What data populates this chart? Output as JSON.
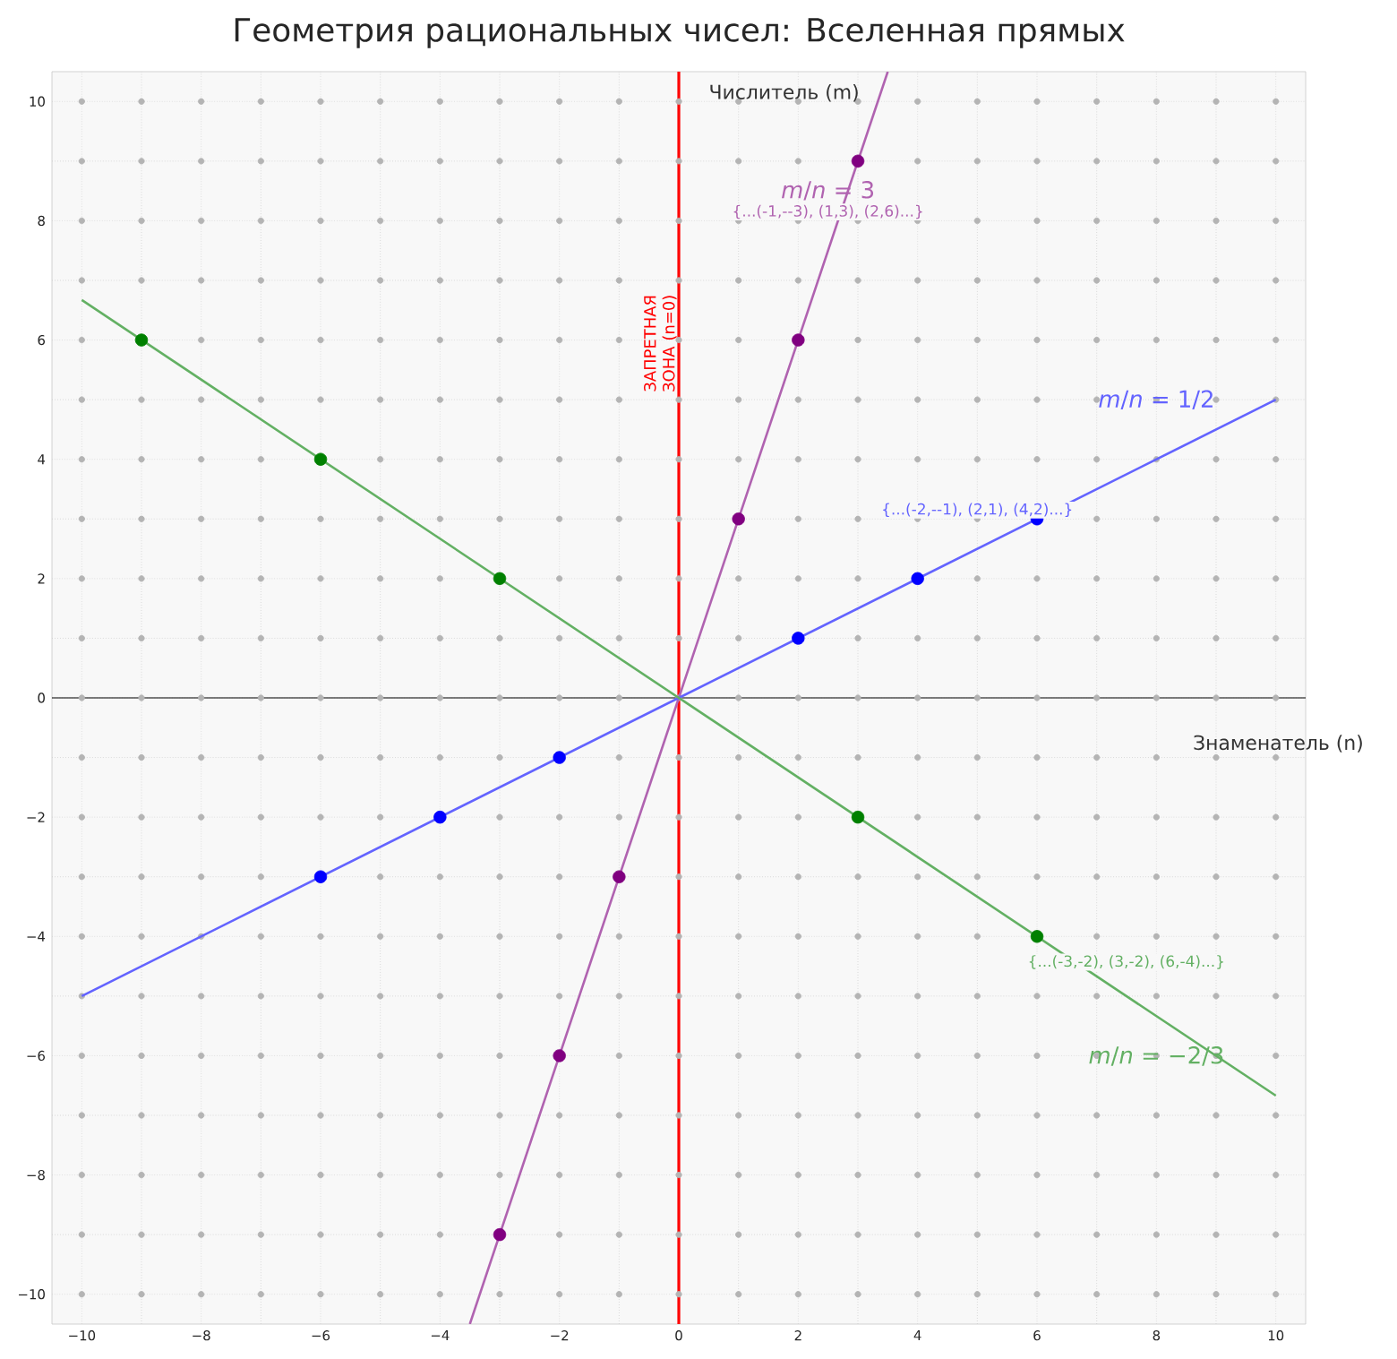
{
  "chart_data": {
    "type": "scatter",
    "title": "Геометрия рациональных чисел: Вселенная прямых",
    "xlabel": "Знаменатель (n)",
    "ylabel": "Числитель (m)",
    "xlim": [
      -10.5,
      10.5
    ],
    "ylim": [
      -10.5,
      10.5
    ],
    "xticks": [
      {
        "value": -10,
        "label": "−10"
      },
      {
        "value": -8,
        "label": "−8"
      },
      {
        "value": -6,
        "label": "−6"
      },
      {
        "value": -4,
        "label": "−4"
      },
      {
        "value": -2,
        "label": "−2"
      },
      0,
      2,
      4,
      6,
      8,
      10
    ],
    "yticks": [
      {
        "value": -10,
        "label": "−10"
      },
      {
        "value": -8,
        "label": "−8"
      },
      {
        "value": -6,
        "label": "−6"
      },
      {
        "value": -4,
        "label": "−4"
      },
      {
        "value": -2,
        "label": "−2"
      },
      0,
      2,
      4,
      6,
      8,
      10
    ],
    "grid": true,
    "marker": "circle",
    "series": [
      {
        "color": "#b4b4b4",
        "x": [
          -10,
          -10,
          -10,
          -10,
          -10,
          -10,
          -10,
          -10,
          -10,
          -10,
          -10,
          -10,
          -10,
          -10,
          -10,
          -10,
          -10,
          -10,
          -10,
          -10,
          -10,
          -9,
          -9,
          -9,
          -9,
          -9,
          -9,
          -9,
          -9,
          -9,
          -9,
          -9,
          -9,
          -9,
          -9,
          -9,
          -9,
          -9,
          -9,
          -9,
          -9,
          -8,
          -8,
          -8,
          -8,
          -8,
          -8,
          -8,
          -8,
          -8,
          -8,
          -8,
          -8,
          -8,
          -8,
          -8,
          -8,
          -8,
          -8,
          -8,
          -8,
          -8,
          -7,
          -7,
          -7,
          -7,
          -7,
          -7,
          -7,
          -7,
          -7,
          -7,
          -7,
          -7,
          -7,
          -7,
          -7,
          -7,
          -7,
          -7,
          -7,
          -7,
          -7,
          -6,
          -6,
          -6,
          -6,
          -6,
          -6,
          -6,
          -6,
          -6,
          -6,
          -6,
          -6,
          -6,
          -6,
          -6,
          -6,
          -6,
          -6,
          -6,
          -5,
          -5,
          -5,
          -5,
          -5,
          -5,
          -5,
          -5,
          -5,
          -5,
          -5,
          -5,
          -5,
          -5,
          -5,
          -5,
          -5,
          -5,
          -5,
          -5,
          -5,
          -4,
          -4,
          -4,
          -4,
          -4,
          -4,
          -4,
          -4,
          -4,
          -4,
          -4,
          -4,
          -4,
          -4,
          -4,
          -4,
          -4,
          -4,
          -4,
          -4,
          -3,
          -3,
          -3,
          -3,
          -3,
          -3,
          -3,
          -3,
          -3,
          -3,
          -3,
          -3,
          -3,
          -3,
          -3,
          -3,
          -3,
          -3,
          -3,
          -2,
          -2,
          -2,
          -2,
          -2,
          -2,
          -2,
          -2,
          -2,
          -2,
          -2,
          -2,
          -2,
          -2,
          -2,
          -2,
          -2,
          -2,
          -2,
          -1,
          -1,
          -1,
          -1,
          -1,
          -1,
          -1,
          -1,
          -1,
          -1,
          -1,
          -1,
          -1,
          -1,
          -1,
          -1,
          -1,
          -1,
          -1,
          -1,
          0,
          0,
          0,
          0,
          0,
          0,
          0,
          0,
          0,
          0,
          0,
          0,
          0,
          0,
          0,
          0,
          0,
          0,
          0,
          0,
          0,
          1,
          1,
          1,
          1,
          1,
          1,
          1,
          1,
          1,
          1,
          1,
          1,
          1,
          1,
          1,
          1,
          1,
          1,
          1,
          1,
          2,
          2,
          2,
          2,
          2,
          2,
          2,
          2,
          2,
          2,
          2,
          2,
          2,
          2,
          2,
          2,
          2,
          2,
          2,
          3,
          3,
          3,
          3,
          3,
          3,
          3,
          3,
          3,
          3,
          3,
          3,
          3,
          3,
          3,
          3,
          3,
          3,
          3,
          4,
          4,
          4,
          4,
          4,
          4,
          4,
          4,
          4,
          4,
          4,
          4,
          4,
          4,
          4,
          4,
          4,
          4,
          4,
          4,
          5,
          5,
          5,
          5,
          5,
          5,
          5,
          5,
          5,
          5,
          5,
          5,
          5,
          5,
          5,
          5,
          5,
          5,
          5,
          5,
          5,
          6,
          6,
          6,
          6,
          6,
          6,
          6,
          6,
          6,
          6,
          6,
          6,
          6,
          6,
          6,
          6,
          6,
          6,
          6,
          7,
          7,
          7,
          7,
          7,
          7,
          7,
          7,
          7,
          7,
          7,
          7,
          7,
          7,
          7,
          7,
          7,
          7,
          7,
          7,
          7,
          8,
          8,
          8,
          8,
          8,
          8,
          8,
          8,
          8,
          8,
          8,
          8,
          8,
          8,
          8,
          8,
          8,
          8,
          8,
          8,
          8,
          9,
          9,
          9,
          9,
          9,
          9,
          9,
          9,
          9,
          9,
          9,
          9,
          9,
          9,
          9,
          9,
          9,
          9,
          9,
          9,
          9,
          10,
          10,
          10,
          10,
          10,
          10,
          10,
          10,
          10,
          10,
          10,
          10,
          10,
          10,
          10,
          10,
          10,
          10,
          10,
          10,
          10
        ],
        "values": [
          -10,
          -9,
          -8,
          -7,
          -6,
          -5,
          -4,
          -3,
          -2,
          -1,
          0,
          1,
          2,
          3,
          4,
          5,
          6,
          7,
          8,
          9,
          10,
          -10,
          -9,
          -8,
          -7,
          -6,
          -5,
          -4,
          -3,
          -2,
          -1,
          0,
          1,
          2,
          3,
          4,
          5,
          7,
          8,
          9,
          10,
          -10,
          -9,
          -8,
          -7,
          -6,
          -5,
          -4,
          -3,
          -2,
          -1,
          0,
          1,
          2,
          3,
          4,
          5,
          6,
          7,
          8,
          9,
          10,
          -10,
          -9,
          -8,
          -7,
          -6,
          -5,
          -4,
          -3,
          -2,
          -1,
          0,
          1,
          2,
          3,
          4,
          5,
          6,
          7,
          8,
          9,
          10,
          -10,
          -9,
          -8,
          -7,
          -6,
          -5,
          -4,
          -2,
          -1,
          0,
          1,
          2,
          3,
          5,
          6,
          7,
          8,
          9,
          10,
          -10,
          -9,
          -8,
          -7,
          -6,
          -5,
          -4,
          -3,
          -2,
          -1,
          0,
          1,
          2,
          3,
          4,
          5,
          6,
          7,
          8,
          9,
          10,
          -10,
          -9,
          -8,
          -7,
          -6,
          -5,
          -4,
          -3,
          -1,
          0,
          1,
          2,
          3,
          4,
          5,
          6,
          7,
          8,
          9,
          10,
          -10,
          -8,
          -7,
          -6,
          -5,
          -4,
          -3,
          -2,
          -1,
          0,
          1,
          3,
          4,
          5,
          6,
          7,
          8,
          9,
          10,
          -10,
          -9,
          -8,
          -7,
          -5,
          -4,
          -3,
          -2,
          0,
          1,
          2,
          3,
          4,
          5,
          6,
          7,
          8,
          9,
          10,
          -10,
          -9,
          -8,
          -7,
          -6,
          -5,
          -4,
          -2,
          -1,
          0,
          1,
          2,
          3,
          4,
          5,
          6,
          7,
          8,
          9,
          10,
          -10,
          -9,
          -8,
          -7,
          -6,
          -5,
          -4,
          -3,
          -2,
          -1,
          0,
          1,
          2,
          3,
          4,
          5,
          6,
          7,
          8,
          9,
          10,
          -10,
          -9,
          -8,
          -7,
          -6,
          -5,
          -4,
          -3,
          -2,
          -1,
          0,
          1,
          2,
          4,
          5,
          6,
          7,
          8,
          9,
          10,
          -10,
          -9,
          -8,
          -7,
          -6,
          -5,
          -4,
          -3,
          -2,
          -1,
          0,
          2,
          3,
          4,
          5,
          7,
          8,
          9,
          10,
          -10,
          -9,
          -8,
          -7,
          -6,
          -5,
          -4,
          -3,
          -1,
          0,
          1,
          2,
          3,
          4,
          5,
          6,
          7,
          8,
          10,
          -10,
          -9,
          -8,
          -7,
          -6,
          -5,
          -4,
          -3,
          -2,
          -1,
          0,
          1,
          3,
          4,
          5,
          6,
          7,
          8,
          9,
          10,
          -10,
          -9,
          -8,
          -7,
          -6,
          -5,
          -4,
          -3,
          -2,
          -1,
          0,
          1,
          2,
          3,
          4,
          5,
          6,
          7,
          8,
          9,
          10,
          -10,
          -9,
          -8,
          -7,
          -6,
          -5,
          -3,
          -2,
          -1,
          0,
          1,
          2,
          4,
          5,
          6,
          7,
          8,
          9,
          10,
          -10,
          -9,
          -8,
          -7,
          -6,
          -5,
          -4,
          -3,
          -2,
          -1,
          0,
          1,
          2,
          3,
          4,
          5,
          6,
          7,
          8,
          9,
          10,
          -10,
          -9,
          -8,
          -7,
          -6,
          -5,
          -4,
          -3,
          -2,
          -1,
          0,
          1,
          2,
          3,
          4,
          5,
          6,
          7,
          8,
          9,
          10,
          -10,
          -9,
          -8,
          -7,
          -6,
          -5,
          -4,
          -3,
          -2,
          -1,
          0,
          1,
          2,
          3,
          4,
          5,
          6,
          7,
          8,
          9,
          10,
          -10,
          -9,
          -8,
          -7,
          -6,
          -5,
          -4,
          -3,
          -2,
          -1,
          0,
          1,
          2,
          3,
          4,
          5,
          6,
          7,
          8,
          9,
          10
        ]
      },
      {
        "type": "line",
        "marker": "none",
        "color": "#b063b0",
        "x": [
          -3.5,
          3.5
        ],
        "values": [
          -10.5,
          10.5
        ]
      },
      {
        "type": "line",
        "marker": "none",
        "color": "#6363ff",
        "x": [
          -10,
          10
        ],
        "values": [
          -5,
          5
        ]
      },
      {
        "type": "line",
        "marker": "none",
        "color": "#63b063",
        "x": [
          -10,
          10
        ],
        "values": [
          6.67,
          -6.67
        ]
      },
      {
        "color": "#800080",
        "x": [
          -3,
          -2,
          -1,
          1,
          2,
          3
        ],
        "values": [
          -9,
          -6,
          -3,
          3,
          6,
          9
        ]
      },
      {
        "color": "#0000ff",
        "x": [
          -6,
          -4,
          -2,
          2,
          4,
          6
        ],
        "values": [
          -3,
          -2,
          -1,
          1,
          2,
          3
        ]
      },
      {
        "color": "#008000",
        "x": [
          -9,
          -6,
          -3,
          3,
          6
        ],
        "values": [
          6,
          4,
          2,
          -2,
          -4
        ]
      }
    ],
    "ref_lines": [
      {
        "axis": "y",
        "value": 0,
        "color": "#000000"
      },
      {
        "axis": "x",
        "value": 0,
        "label": "ЗАПРЕТНАЯ ЗОНА (n=0)",
        "color": "#ff0000"
      }
    ],
    "annotations": [
      "*m*/*n* = 3",
      "{...(-1,--3), (1,3), (2,6)...}",
      "*m*/*n* = 1/2",
      "{...(-2,--1), (2,1), (4,2)...}",
      "{...(-3,-2), (3,-2), (6,-4)...}",
      "*m*/*n* = −2/3"
    ]
  }
}
